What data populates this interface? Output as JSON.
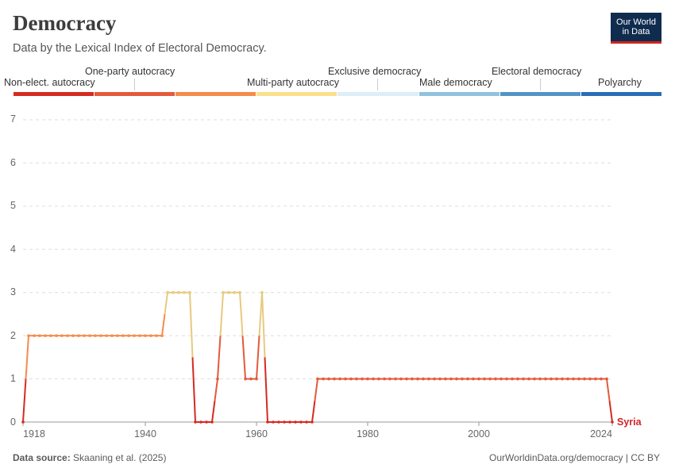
{
  "header": {
    "title": "Democracy",
    "subtitle": "Data by the Lexical Index of Electoral Democracy."
  },
  "logo": {
    "line1": "Our World",
    "line2": "in Data"
  },
  "footer": {
    "source_label": "Data source:",
    "source_text": "Skaaning et al. (2025)",
    "url_license": "OurWorldinData.org/democracy | CC BY"
  },
  "chart_data": {
    "type": "line",
    "title": "Democracy",
    "subtitle": "Data by the Lexical Index of Electoral Democracy.",
    "xlabel": "",
    "ylabel": "",
    "xlim": [
      1918,
      2024
    ],
    "ylim": [
      0,
      7
    ],
    "yticks": [
      "0",
      "1",
      "2",
      "3",
      "4",
      "5",
      "6",
      "7"
    ],
    "xticks": [
      "1918",
      "1940",
      "1960",
      "1980",
      "2000",
      "2024"
    ],
    "grid": true,
    "legend": {
      "placement": "top",
      "categories": [
        {
          "label": "Non-elect. autocracy",
          "color": "#d42b21"
        },
        {
          "label": "One-party autocracy",
          "color": "#e35a3c"
        },
        {
          "label": "Multi-party autocracy",
          "color": "#f58b4c"
        },
        {
          "label": "Exclusive democracy",
          "color": "#fbe08c"
        },
        {
          "label": "Male democracy",
          "color": "#ddeef8"
        },
        {
          "label": "Electoral democracy",
          "color": "#90c2de"
        },
        {
          "label": "Polyarchy",
          "color": "#5394c7"
        },
        {
          "label": "",
          "color": "#2a6db5"
        }
      ]
    },
    "series": [
      {
        "name": "Syria",
        "color": "#d3232a",
        "points": [
          [
            1918,
            0
          ],
          [
            1919,
            2
          ],
          [
            1920,
            2
          ],
          [
            1921,
            2
          ],
          [
            1922,
            2
          ],
          [
            1923,
            2
          ],
          [
            1924,
            2
          ],
          [
            1925,
            2
          ],
          [
            1926,
            2
          ],
          [
            1927,
            2
          ],
          [
            1928,
            2
          ],
          [
            1929,
            2
          ],
          [
            1930,
            2
          ],
          [
            1931,
            2
          ],
          [
            1932,
            2
          ],
          [
            1933,
            2
          ],
          [
            1934,
            2
          ],
          [
            1935,
            2
          ],
          [
            1936,
            2
          ],
          [
            1937,
            2
          ],
          [
            1938,
            2
          ],
          [
            1939,
            2
          ],
          [
            1940,
            2
          ],
          [
            1941,
            2
          ],
          [
            1942,
            2
          ],
          [
            1943,
            2
          ],
          [
            1944,
            3
          ],
          [
            1945,
            3
          ],
          [
            1946,
            3
          ],
          [
            1947,
            3
          ],
          [
            1948,
            3
          ],
          [
            1949,
            0
          ],
          [
            1950,
            0
          ],
          [
            1951,
            0
          ],
          [
            1952,
            0
          ],
          [
            1953,
            1
          ],
          [
            1954,
            3
          ],
          [
            1955,
            3
          ],
          [
            1956,
            3
          ],
          [
            1957,
            3
          ],
          [
            1958,
            1
          ],
          [
            1959,
            1
          ],
          [
            1960,
            1
          ],
          [
            1961,
            3
          ],
          [
            1962,
            0
          ],
          [
            1963,
            0
          ],
          [
            1964,
            0
          ],
          [
            1965,
            0
          ],
          [
            1966,
            0
          ],
          [
            1967,
            0
          ],
          [
            1968,
            0
          ],
          [
            1969,
            0
          ],
          [
            1970,
            0
          ],
          [
            1971,
            1
          ],
          [
            1972,
            1
          ],
          [
            1973,
            1
          ],
          [
            1974,
            1
          ],
          [
            1975,
            1
          ],
          [
            1976,
            1
          ],
          [
            1977,
            1
          ],
          [
            1978,
            1
          ],
          [
            1979,
            1
          ],
          [
            1980,
            1
          ],
          [
            1981,
            1
          ],
          [
            1982,
            1
          ],
          [
            1983,
            1
          ],
          [
            1984,
            1
          ],
          [
            1985,
            1
          ],
          [
            1986,
            1
          ],
          [
            1987,
            1
          ],
          [
            1988,
            1
          ],
          [
            1989,
            1
          ],
          [
            1990,
            1
          ],
          [
            1991,
            1
          ],
          [
            1992,
            1
          ],
          [
            1993,
            1
          ],
          [
            1994,
            1
          ],
          [
            1995,
            1
          ],
          [
            1996,
            1
          ],
          [
            1997,
            1
          ],
          [
            1998,
            1
          ],
          [
            1999,
            1
          ],
          [
            2000,
            1
          ],
          [
            2001,
            1
          ],
          [
            2002,
            1
          ],
          [
            2003,
            1
          ],
          [
            2004,
            1
          ],
          [
            2005,
            1
          ],
          [
            2006,
            1
          ],
          [
            2007,
            1
          ],
          [
            2008,
            1
          ],
          [
            2009,
            1
          ],
          [
            2010,
            1
          ],
          [
            2011,
            1
          ],
          [
            2012,
            1
          ],
          [
            2013,
            1
          ],
          [
            2014,
            1
          ],
          [
            2015,
            1
          ],
          [
            2016,
            1
          ],
          [
            2017,
            1
          ],
          [
            2018,
            1
          ],
          [
            2019,
            1
          ],
          [
            2020,
            1
          ],
          [
            2021,
            1
          ],
          [
            2022,
            1
          ],
          [
            2023,
            1
          ],
          [
            2024,
            0
          ]
        ]
      }
    ],
    "value_colors": [
      "#d42b21",
      "#e35a3c",
      "#f58b4c",
      "#e8c97f"
    ]
  }
}
